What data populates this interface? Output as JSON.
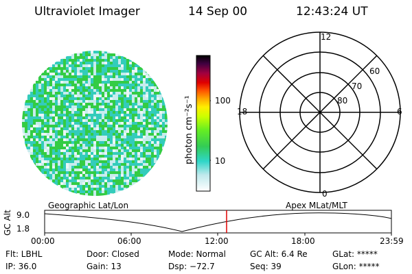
{
  "header": {
    "instrument": "Ultraviolet Imager",
    "date": "14 Sep 00",
    "time": "12:43:24 UT"
  },
  "colorbar": {
    "unit_label": "photon cm⁻²s⁻¹",
    "ticks": [
      "100",
      "10"
    ]
  },
  "polar_plot": {
    "mlt_labels": {
      "top": "12",
      "left": "18",
      "right": "6",
      "bottom": "0"
    },
    "lat_labels": [
      "60",
      "70",
      "80"
    ]
  },
  "timeline": {
    "left_title": "Geographic Lat/Lon",
    "right_title": "Apex MLat/MLT",
    "axis_label": "GC Alt",
    "y_labels": [
      "9.0",
      "1.8"
    ],
    "x_labels": [
      "00:00",
      "06:00",
      "12:00",
      "18:00",
      "23:59"
    ],
    "current_marker_color": "#e00000"
  },
  "footer": {
    "rows": [
      [
        "Flt: LBHL",
        "Door: Closed",
        "Mode: Normal",
        "GC Alt: 6.4 Re",
        "GLat: *****"
      ],
      [
        "IP: 36.0",
        "Gain: 13",
        "Dsp:  −72.7",
        "Seq: 39",
        "GLon: *****"
      ]
    ]
  },
  "colors": {
    "image_green": "#33cc44",
    "image_cyan": "#33ccbb",
    "image_light": "#c8ecee",
    "colorbar_stops": [
      "#ffffff",
      "#bfe9ec",
      "#2fd6c8",
      "#33cc55",
      "#66ee22",
      "#ccff00",
      "#ffee00",
      "#ffaa00",
      "#ff5500",
      "#e00000",
      "#a00040",
      "#400040",
      "#000000"
    ]
  }
}
